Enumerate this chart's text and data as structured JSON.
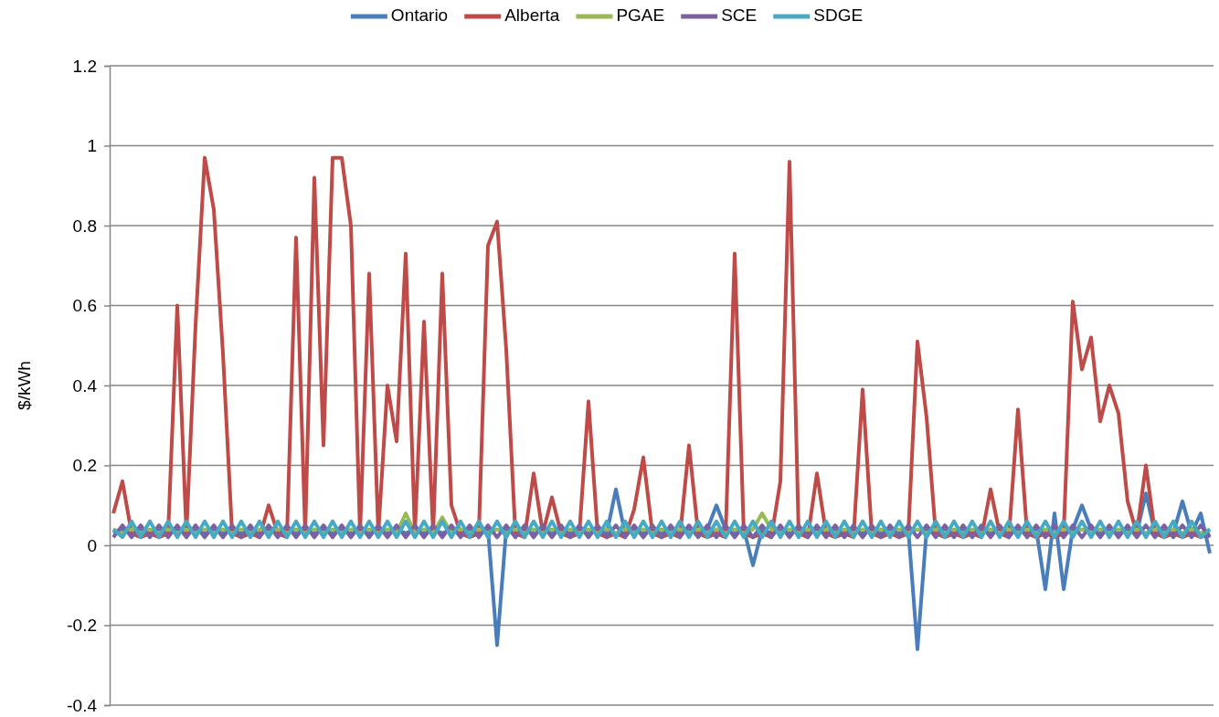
{
  "chart_data": {
    "type": "line",
    "ylabel": "$/kWh",
    "ylim": [
      -0.4,
      1.2
    ],
    "yticks": [
      -0.4,
      -0.2,
      0,
      0.2,
      0.4,
      0.6,
      0.8,
      1,
      1.2
    ],
    "grid": "y",
    "legend": "top",
    "marker": "none",
    "line_style": "solid",
    "categories": [
      null,
      null,
      null,
      null,
      null,
      null,
      null,
      null,
      null,
      null,
      null,
      null,
      null,
      null,
      null,
      null,
      null,
      null,
      null,
      null,
      null,
      null,
      null,
      null,
      null,
      null,
      null,
      null,
      null,
      null,
      null,
      null,
      null,
      null,
      null,
      null,
      null,
      null,
      null,
      null,
      null,
      null,
      null,
      null,
      null,
      null,
      null,
      null,
      null,
      null,
      null,
      null,
      null,
      null,
      null,
      null,
      null,
      null,
      null,
      null,
      null,
      null,
      null,
      null,
      null,
      null,
      null,
      null,
      null,
      null,
      null,
      null,
      null,
      null,
      null,
      null,
      null,
      null,
      null,
      null,
      null,
      null,
      null,
      null,
      null,
      null,
      null,
      null,
      null,
      null,
      null,
      null,
      null,
      null,
      null,
      null,
      null,
      null,
      null,
      null,
      null,
      null,
      null,
      null,
      null,
      null,
      null,
      null,
      null,
      null,
      null,
      null,
      null,
      null,
      null,
      null,
      null,
      null,
      null,
      null,
      null
    ],
    "series": [
      {
        "name": "Ontario",
        "color": "#4a7ebb",
        "values": [
          0.03,
          0.04,
          0.03,
          0.04,
          0.03,
          0.04,
          0.03,
          0.04,
          0.03,
          0.04,
          0.03,
          0.04,
          0.03,
          0.04,
          0.03,
          0.04,
          0.03,
          0.04,
          0.03,
          0.04,
          0.03,
          0.04,
          0.03,
          0.04,
          0.03,
          0.04,
          0.03,
          0.04,
          0.03,
          0.04,
          0.03,
          0.04,
          0.03,
          0.04,
          0.03,
          0.04,
          0.03,
          0.04,
          0.03,
          0.04,
          0.03,
          0.04,
          -0.25,
          0.04,
          0.03,
          0.04,
          0.03,
          0.04,
          0.03,
          0.04,
          0.03,
          0.04,
          0.03,
          0.04,
          0.03,
          0.14,
          0.03,
          0.04,
          0.03,
          0.04,
          0.03,
          0.04,
          0.03,
          0.04,
          0.03,
          0.04,
          0.1,
          0.04,
          0.03,
          0.04,
          -0.05,
          0.04,
          0.03,
          0.04,
          0.03,
          0.04,
          0.03,
          0.04,
          0.03,
          0.04,
          0.03,
          0.04,
          0.03,
          0.04,
          0.03,
          0.04,
          0.03,
          0.04,
          -0.26,
          0.04,
          0.03,
          0.04,
          0.03,
          0.04,
          0.03,
          0.04,
          0.03,
          0.04,
          0.03,
          0.04,
          0.03,
          0.04,
          -0.11,
          0.08,
          -0.11,
          0.04,
          0.1,
          0.04,
          0.03,
          0.04,
          0.03,
          0.04,
          0.03,
          0.13,
          0.03,
          0.04,
          0.03,
          0.11,
          0.03,
          0.08,
          -0.02
        ]
      },
      {
        "name": "Alberta",
        "color": "#be4b48",
        "values": [
          0.08,
          0.16,
          0.03,
          0.02,
          0.03,
          0.02,
          0.03,
          0.6,
          0.03,
          0.55,
          0.97,
          0.84,
          0.48,
          0.03,
          0.02,
          0.03,
          0.02,
          0.1,
          0.03,
          0.02,
          0.77,
          0.03,
          0.92,
          0.25,
          0.97,
          0.97,
          0.8,
          0.03,
          0.68,
          0.03,
          0.4,
          0.26,
          0.73,
          0.03,
          0.56,
          0.03,
          0.68,
          0.1,
          0.03,
          0.02,
          0.03,
          0.75,
          0.81,
          0.49,
          0.03,
          0.02,
          0.18,
          0.03,
          0.12,
          0.03,
          0.02,
          0.03,
          0.36,
          0.03,
          0.02,
          0.03,
          0.02,
          0.09,
          0.22,
          0.03,
          0.02,
          0.03,
          0.02,
          0.25,
          0.03,
          0.02,
          0.03,
          0.02,
          0.73,
          0.03,
          0.02,
          0.03,
          0.02,
          0.16,
          0.96,
          0.03,
          0.02,
          0.18,
          0.03,
          0.02,
          0.03,
          0.02,
          0.39,
          0.03,
          0.02,
          0.03,
          0.02,
          0.03,
          0.51,
          0.32,
          0.03,
          0.02,
          0.03,
          0.02,
          0.03,
          0.02,
          0.14,
          0.03,
          0.02,
          0.34,
          0.03,
          0.02,
          0.03,
          0.02,
          0.03,
          0.61,
          0.44,
          0.52,
          0.31,
          0.4,
          0.33,
          0.11,
          0.03,
          0.2,
          0.03,
          0.02,
          0.03,
          0.02,
          0.03,
          0.02,
          0.03
        ]
      },
      {
        "name": "PGAE",
        "color": "#98b954",
        "values": [
          0.04,
          0.03,
          0.04,
          0.03,
          0.04,
          0.03,
          0.04,
          0.03,
          0.04,
          0.03,
          0.04,
          0.03,
          0.04,
          0.03,
          0.04,
          0.03,
          0.04,
          0.03,
          0.04,
          0.03,
          0.04,
          0.03,
          0.04,
          0.03,
          0.04,
          0.03,
          0.04,
          0.03,
          0.04,
          0.03,
          0.04,
          0.03,
          0.08,
          0.03,
          0.04,
          0.03,
          0.07,
          0.03,
          0.04,
          0.03,
          0.04,
          0.03,
          0.04,
          0.03,
          0.04,
          0.03,
          0.04,
          0.03,
          0.04,
          0.03,
          0.04,
          0.03,
          0.04,
          0.03,
          0.04,
          0.03,
          0.04,
          0.03,
          0.04,
          0.03,
          0.04,
          0.03,
          0.04,
          0.03,
          0.04,
          0.03,
          0.04,
          0.03,
          0.04,
          0.03,
          0.04,
          0.08,
          0.04,
          0.03,
          0.04,
          0.03,
          0.04,
          0.03,
          0.04,
          0.03,
          0.04,
          0.03,
          0.04,
          0.03,
          0.04,
          0.03,
          0.04,
          0.03,
          0.04,
          0.03,
          0.04,
          0.03,
          0.04,
          0.03,
          0.04,
          0.03,
          0.04,
          0.03,
          0.04,
          0.03,
          0.04,
          0.03,
          0.04,
          0.03,
          0.04,
          0.03,
          0.04,
          0.03,
          0.04,
          0.03,
          0.04,
          0.03,
          0.04,
          0.03,
          0.04,
          0.03,
          0.04,
          0.03,
          0.04,
          0.03,
          0.04
        ]
      },
      {
        "name": "SCE",
        "color": "#7d60a0",
        "values": [
          0.02,
          0.05,
          0.02,
          0.05,
          0.02,
          0.05,
          0.02,
          0.05,
          0.02,
          0.05,
          0.02,
          0.05,
          0.02,
          0.05,
          0.02,
          0.05,
          0.02,
          0.05,
          0.02,
          0.05,
          0.02,
          0.05,
          0.02,
          0.05,
          0.02,
          0.05,
          0.02,
          0.05,
          0.02,
          0.05,
          0.02,
          0.05,
          0.02,
          0.05,
          0.02,
          0.05,
          0.02,
          0.05,
          0.02,
          0.05,
          0.02,
          0.05,
          0.02,
          0.05,
          0.02,
          0.05,
          0.02,
          0.05,
          0.02,
          0.05,
          0.02,
          0.05,
          0.02,
          0.05,
          0.02,
          0.05,
          0.02,
          0.05,
          0.02,
          0.05,
          0.02,
          0.05,
          0.02,
          0.05,
          0.02,
          0.05,
          0.02,
          0.05,
          0.02,
          0.05,
          0.02,
          0.05,
          0.02,
          0.05,
          0.02,
          0.05,
          0.02,
          0.05,
          0.02,
          0.05,
          0.02,
          0.05,
          0.02,
          0.05,
          0.02,
          0.05,
          0.02,
          0.05,
          0.02,
          0.05,
          0.02,
          0.05,
          0.02,
          0.05,
          0.02,
          0.05,
          0.02,
          0.05,
          0.02,
          0.05,
          0.02,
          0.05,
          0.02,
          0.05,
          0.02,
          0.05,
          0.02,
          0.05,
          0.02,
          0.05,
          0.02,
          0.05,
          0.02,
          0.05,
          0.02,
          0.05,
          0.02,
          0.05,
          0.02,
          0.05,
          0.02
        ]
      },
      {
        "name": "SDGE",
        "color": "#46aac5",
        "values": [
          0.04,
          0.02,
          0.06,
          0.02,
          0.06,
          0.02,
          0.06,
          0.02,
          0.06,
          0.02,
          0.06,
          0.02,
          0.06,
          0.02,
          0.06,
          0.02,
          0.06,
          0.02,
          0.06,
          0.02,
          0.06,
          0.02,
          0.06,
          0.02,
          0.06,
          0.02,
          0.06,
          0.02,
          0.06,
          0.02,
          0.06,
          0.02,
          0.06,
          0.02,
          0.06,
          0.02,
          0.06,
          0.02,
          0.06,
          0.02,
          0.06,
          0.02,
          0.06,
          0.02,
          0.06,
          0.02,
          0.06,
          0.02,
          0.06,
          0.02,
          0.06,
          0.02,
          0.06,
          0.02,
          0.06,
          0.02,
          0.06,
          0.02,
          0.06,
          0.02,
          0.06,
          0.02,
          0.06,
          0.02,
          0.06,
          0.02,
          0.06,
          0.02,
          0.06,
          0.02,
          0.06,
          0.02,
          0.06,
          0.02,
          0.06,
          0.02,
          0.06,
          0.02,
          0.06,
          0.02,
          0.06,
          0.02,
          0.06,
          0.02,
          0.06,
          0.02,
          0.06,
          0.02,
          0.06,
          0.02,
          0.06,
          0.02,
          0.06,
          0.02,
          0.06,
          0.02,
          0.06,
          0.02,
          0.06,
          0.02,
          0.06,
          0.02,
          0.06,
          0.02,
          0.06,
          0.02,
          0.06,
          0.02,
          0.06,
          0.02,
          0.06,
          0.02,
          0.06,
          0.02,
          0.06,
          0.02,
          0.06,
          0.02,
          0.06,
          0.02,
          0.04
        ]
      }
    ]
  }
}
